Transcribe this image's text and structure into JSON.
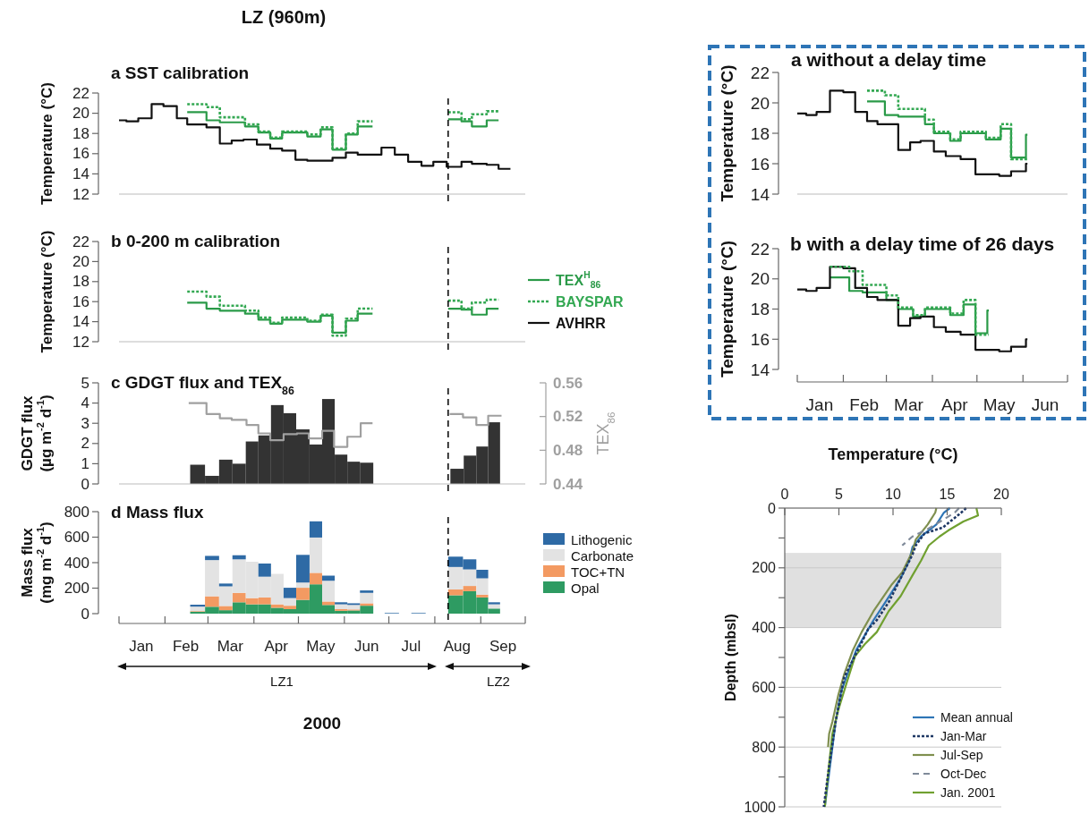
{
  "chart_data": [
    {
      "type": "step",
      "title": "a SST calibration",
      "ylabel": "Temperature (°C)",
      "annotations": [
        "LZ (960m)"
      ],
      "xlim": [
        "2000-01-01",
        "2000-10-01"
      ],
      "ylim": [
        12,
        22
      ],
      "yticks": [
        12,
        14,
        16,
        18,
        20,
        22
      ],
      "tick_labels": "y",
      "legend": "right",
      "ref_lines": [
        {
          "axis": "x",
          "value": "2000-08-10",
          "color": "#000000",
          "line_style": "dashed"
        }
      ],
      "series": [
        {
          "name": "TEX$^{H}$$_{86}$",
          "color": "#2a9a48",
          "line_style": "solid",
          "x": [
            "2000-02-16",
            "2000-02-29",
            "2000-03-09",
            "2000-03-26",
            "2000-04-04",
            "2000-04-12",
            "2000-04-20",
            "2000-05-07",
            "2000-05-16",
            "2000-05-24",
            "2000-06-02",
            "2000-06-10",
            "2000-06-20",
            "2000-07-01",
            "2000-08-10",
            "2000-08-19",
            "2000-08-26",
            "2000-09-05",
            "2000-09-13"
          ],
          "values": [
            20.1,
            19.3,
            19.1,
            18.7,
            18.1,
            17.5,
            18.1,
            17.7,
            18.4,
            16.4,
            17.9,
            18.7,
            18.7,
            null,
            19.4,
            19.2,
            18.7,
            19.3,
            19.3
          ]
        },
        {
          "name": "BAYSPAR",
          "color": "#33a852",
          "line_style": "dotted",
          "x": [
            "2000-02-16",
            "2000-02-29",
            "2000-03-09",
            "2000-03-26",
            "2000-04-04",
            "2000-04-12",
            "2000-04-20",
            "2000-05-07",
            "2000-05-16",
            "2000-05-24",
            "2000-06-02",
            "2000-06-10",
            "2000-06-20",
            "2000-07-01",
            "2000-08-10",
            "2000-08-19",
            "2000-08-26",
            "2000-09-05",
            "2000-09-13"
          ],
          "values": [
            20.9,
            20.6,
            19.6,
            18.9,
            18.2,
            17.6,
            18.2,
            17.9,
            18.6,
            16.5,
            18.0,
            19.2,
            19.2,
            null,
            20.1,
            19.4,
            19.9,
            20.2,
            20.2
          ]
        },
        {
          "name": "AVHRR",
          "color": "#111111",
          "line_style": "solid",
          "x": [
            "2000-01-01",
            "2000-01-06",
            "2000-01-14",
            "2000-01-23",
            "2000-01-31",
            "2000-02-09",
            "2000-02-16",
            "2000-02-29",
            "2000-03-09",
            "2000-03-17",
            "2000-03-25",
            "2000-04-03",
            "2000-04-12",
            "2000-04-20",
            "2000-04-29",
            "2000-05-07",
            "2000-05-16",
            "2000-05-24",
            "2000-06-02",
            "2000-06-10",
            "2000-06-18",
            "2000-06-26",
            "2000-07-05",
            "2000-07-14",
            "2000-07-23",
            "2000-07-31",
            "2000-08-09",
            "2000-08-19",
            "2000-08-26",
            "2000-09-05",
            "2000-09-13",
            "2000-09-21"
          ],
          "values": [
            19.3,
            19.2,
            19.5,
            20.9,
            20.7,
            19.5,
            18.9,
            18.6,
            17.0,
            17.3,
            17.4,
            16.9,
            16.5,
            16.3,
            15.4,
            15.3,
            15.3,
            15.6,
            16.1,
            15.9,
            15.9,
            16.6,
            15.9,
            15.2,
            14.8,
            15.2,
            14.7,
            15.2,
            15.0,
            14.9,
            14.5,
            14.5
          ]
        }
      ]
    },
    {
      "type": "step",
      "title": "b 0-200 m calibration",
      "xlim": [
        "2000-01-01",
        "2000-10-01"
      ],
      "ylabel": "Temperature (°C)",
      "ylim": [
        12,
        22
      ],
      "yticks": [
        12,
        14,
        16,
        18,
        20,
        22
      ],
      "tick_labels": "y",
      "ref_lines": [
        {
          "axis": "x",
          "value": "2000-08-10",
          "color": "#000000",
          "line_style": "dashed"
        }
      ],
      "series": [
        {
          "color": "#2a9a48",
          "line_style": "solid",
          "x": [
            "2000-02-16",
            "2000-02-29",
            "2000-03-09",
            "2000-03-26",
            "2000-04-04",
            "2000-04-12",
            "2000-04-20",
            "2000-05-07",
            "2000-05-16",
            "2000-05-24",
            "2000-06-02",
            "2000-06-10",
            "2000-06-20",
            "2000-07-01",
            "2000-08-10",
            "2000-08-19",
            "2000-08-26",
            "2000-09-05",
            "2000-09-13"
          ],
          "values": [
            15.9,
            15.3,
            15.1,
            14.8,
            14.2,
            13.8,
            14.2,
            14.0,
            14.6,
            12.9,
            14.1,
            14.8,
            14.8,
            null,
            15.3,
            15.2,
            14.7,
            15.3,
            15.3
          ]
        },
        {
          "color": "#33a852",
          "line_style": "dotted",
          "x": [
            "2000-02-16",
            "2000-02-29",
            "2000-03-09",
            "2000-03-26",
            "2000-04-04",
            "2000-04-12",
            "2000-04-20",
            "2000-05-07",
            "2000-05-16",
            "2000-05-24",
            "2000-06-02",
            "2000-06-10",
            "2000-06-20",
            "2000-07-01",
            "2000-08-10",
            "2000-08-19",
            "2000-08-26",
            "2000-09-05",
            "2000-09-13"
          ],
          "values": [
            17.0,
            16.5,
            15.6,
            15.1,
            14.4,
            13.9,
            14.4,
            14.1,
            14.7,
            12.6,
            14.3,
            15.3,
            15.3,
            null,
            16.1,
            15.3,
            15.9,
            16.2,
            16.2
          ]
        }
      ]
    },
    {
      "type": "bar",
      "title": "c GDGT flux and TEX$_{86}$",
      "ylabel": "GDGT flux\n(µg m$^{-2}$ d$^{-1}$)",
      "y2label": "TEX$_{86}$",
      "xlim": [
        "2000-01-01",
        "2000-10-01"
      ],
      "ylim": [
        0,
        5
      ],
      "yticks": [
        0,
        1,
        2,
        3,
        4,
        5
      ],
      "y2lim": [
        0.44,
        0.56
      ],
      "y2ticks": [
        0.44,
        0.48,
        0.52,
        0.56
      ],
      "tick_labels": "y",
      "ref_lines": [
        {
          "axis": "x",
          "value": "2000-08-10",
          "color": "#000000",
          "line_style": "dashed"
        }
      ],
      "series": [
        {
          "color": "#333333",
          "x": [
            "2000-02-23",
            "2000-03-04",
            "2000-03-13",
            "2000-03-22",
            "2000-03-31",
            "2000-04-08",
            "2000-04-17",
            "2000-04-25",
            "2000-05-04",
            "2000-05-13",
            "2000-05-21",
            "2000-05-30",
            "2000-06-07",
            "2000-06-16",
            "2000-07-15",
            "2000-08-16",
            "2000-08-25",
            "2000-09-02",
            "2000-09-10"
          ],
          "values": [
            0.95,
            0.4,
            1.2,
            1.0,
            2.1,
            2.4,
            3.9,
            3.5,
            2.7,
            1.95,
            4.2,
            1.45,
            1.1,
            1.05,
            null,
            0.75,
            1.4,
            1.85,
            3.05
          ]
        },
        {
          "type": "step",
          "axis": "y2",
          "color": "#a0a0a0",
          "x": [
            "2000-02-17",
            "2000-02-29",
            "2000-03-09",
            "2000-03-17",
            "2000-03-27",
            "2000-04-04",
            "2000-04-12",
            "2000-04-21",
            "2000-04-30",
            "2000-05-08",
            "2000-05-17",
            "2000-05-25",
            "2000-06-03",
            "2000-06-12",
            "2000-06-20",
            "2000-07-01",
            "2000-08-11",
            "2000-08-20",
            "2000-08-29",
            "2000-09-06",
            "2000-09-15"
          ],
          "values": [
            0.536,
            0.523,
            0.518,
            0.516,
            0.51,
            0.5,
            0.492,
            0.499,
            0.5,
            0.494,
            0.503,
            0.484,
            0.496,
            0.512,
            0.512,
            null,
            0.523,
            0.519,
            0.51,
            0.521,
            0.521
          ]
        }
      ]
    },
    {
      "type": "bar",
      "stacked": true,
      "title": "d Mass flux",
      "ylabel": "Mass flux\n(mg m$^{-2}$ d$^{-1}$)",
      "xlabel": "2000",
      "annotations": [
        "LZ1",
        "LZ2"
      ],
      "xlim": [
        "2000-01-01",
        "2000-10-01"
      ],
      "xticks": [
        {
          "value": "2000-01-01",
          "label": null
        },
        {
          "value": "2000-01-16",
          "label": "Jan"
        },
        {
          "value": "2000-02-01",
          "label": null
        },
        {
          "value": "2000-02-15",
          "label": "Feb"
        },
        {
          "value": "2000-03-01",
          "label": null
        },
        {
          "value": "2000-03-16",
          "label": "Mar"
        },
        {
          "value": "2000-04-01",
          "label": null
        },
        {
          "value": "2000-04-16",
          "label": "Apr"
        },
        {
          "value": "2000-05-01",
          "label": null
        },
        {
          "value": "2000-05-16",
          "label": "May"
        },
        {
          "value": "2000-06-01",
          "label": null
        },
        {
          "value": "2000-06-16",
          "label": "Jun"
        },
        {
          "value": "2000-07-01",
          "label": null
        },
        {
          "value": "2000-07-16",
          "label": "Jul"
        },
        {
          "value": "2000-08-01",
          "label": null
        },
        {
          "value": "2000-08-16",
          "label": "Aug"
        },
        {
          "value": "2000-09-01",
          "label": null
        },
        {
          "value": "2000-09-16",
          "label": "Sep"
        },
        {
          "value": "2000-10-01",
          "label": null
        }
      ],
      "ylim": [
        0,
        800
      ],
      "yticks": [
        0,
        200,
        400,
        600,
        800
      ],
      "legend": "right",
      "ref_lines": [
        {
          "axis": "x",
          "value": "2000-08-10",
          "color": "#000000",
          "line_style": "dashed"
        }
      ],
      "x": [
        "2000-02-23",
        "2000-03-04",
        "2000-03-13",
        "2000-03-22",
        "2000-03-31",
        "2000-04-08",
        "2000-04-17",
        "2000-04-25",
        "2000-05-04",
        "2000-05-13",
        "2000-05-21",
        "2000-05-30",
        "2000-06-07",
        "2000-06-16",
        "2000-06-24",
        "2000-07-03",
        "2000-07-11",
        "2000-07-21",
        "2000-08-05",
        "2000-08-15",
        "2000-08-25",
        "2000-09-02",
        "2000-09-10"
      ],
      "series": [
        {
          "name": "Opal",
          "color": "#2e9b62",
          "values": [
            15,
            54,
            27,
            89,
            73,
            73,
            46,
            35,
            108,
            230,
            68,
            22,
            25,
            62,
            null,
            0,
            null,
            0,
            null,
            144,
            176,
            127,
            40
          ]
        },
        {
          "name": "TOC+TN",
          "color": "#f39a62",
          "values": [
            5,
            82,
            33,
            74,
            49,
            54,
            27,
            27,
            95,
            90,
            27,
            13,
            8,
            19,
            null,
            0,
            null,
            0,
            null,
            46,
            41,
            22,
            null
          ]
        },
        {
          "name": "Carbonate",
          "color": "#e3e3e3",
          "values": [
            35,
            284,
            154,
            263,
            285,
            163,
            239,
            60,
            41,
            277,
            163,
            38,
            35,
            82,
            null,
            0,
            null,
            0,
            null,
            176,
            130,
            128,
            33
          ]
        },
        {
          "name": "Lithogenic",
          "color": "#2e6aa5",
          "values": [
            15,
            33,
            22,
            32,
            0,
            103,
            0,
            81,
            217,
            127,
            40,
            16,
            13,
            19,
            null,
            5,
            null,
            5,
            null,
            81,
            79,
            67,
            16
          ]
        }
      ]
    },
    {
      "type": "step",
      "title": "a without a delay time",
      "xlim": [
        "2000-01-01",
        "2000-07-01"
      ],
      "ylabel": "Temperature (°C)",
      "ylim": [
        14,
        22
      ],
      "yticks": [
        14,
        16,
        18,
        20,
        22
      ],
      "tick_labels": "y",
      "series": [
        {
          "color": "#2a9a48",
          "line_style": "solid",
          "x": [
            "2000-02-17",
            "2000-02-29",
            "2000-03-09",
            "2000-03-27",
            "2000-04-02",
            "2000-04-13",
            "2000-04-20",
            "2000-05-07",
            "2000-05-17",
            "2000-05-24",
            "2000-06-03",
            "2000-06-04"
          ],
          "values": [
            20.1,
            19.2,
            19.1,
            18.6,
            18.0,
            17.5,
            18.0,
            17.6,
            18.3,
            16.4,
            17.9,
            17.9
          ]
        },
        {
          "color": "#33a852",
          "line_style": "dotted",
          "x": [
            "2000-02-17",
            "2000-02-29",
            "2000-03-09",
            "2000-03-27",
            "2000-04-02",
            "2000-04-13",
            "2000-04-20",
            "2000-05-07",
            "2000-05-17",
            "2000-05-24",
            "2000-06-04"
          ],
          "values": [
            20.8,
            20.5,
            19.6,
            18.9,
            18.1,
            17.6,
            18.1,
            17.7,
            18.6,
            16.3,
            16.3
          ]
        },
        {
          "color": "#111111",
          "line_style": "solid",
          "x": [
            "2000-01-01",
            "2000-01-07",
            "2000-01-14",
            "2000-01-23",
            "2000-02-01",
            "2000-02-09",
            "2000-02-17",
            "2000-02-24",
            "2000-03-09",
            "2000-03-17",
            "2000-03-24",
            "2000-04-02",
            "2000-04-10",
            "2000-04-20",
            "2000-04-30",
            "2000-05-16",
            "2000-05-24",
            "2000-06-03",
            "2000-06-04"
          ],
          "values": [
            19.3,
            19.2,
            19.4,
            20.8,
            20.7,
            19.4,
            18.8,
            18.6,
            16.9,
            17.4,
            17.5,
            16.8,
            16.5,
            16.3,
            15.3,
            15.2,
            15.5,
            16.0,
            16.0
          ]
        }
      ]
    },
    {
      "type": "step",
      "title": "b with a delay time of 26 days",
      "ylabel": "Temperature (°C)",
      "xlim": [
        "2000-01-01",
        "2000-07-01"
      ],
      "xticks": [
        {
          "value": "2000-01-01",
          "label": null
        },
        {
          "value": "2000-01-16",
          "label": "Jan"
        },
        {
          "value": "2000-02-01",
          "label": null
        },
        {
          "value": "2000-02-15",
          "label": "Feb"
        },
        {
          "value": "2000-03-01",
          "label": null
        },
        {
          "value": "2000-03-16",
          "label": "Mar"
        },
        {
          "value": "2000-04-01",
          "label": null
        },
        {
          "value": "2000-04-16",
          "label": "Apr"
        },
        {
          "value": "2000-05-01",
          "label": null
        },
        {
          "value": "2000-05-16",
          "label": "May"
        },
        {
          "value": "2000-06-01",
          "label": null
        },
        {
          "value": "2000-06-16",
          "label": "Jun"
        },
        {
          "value": "2000-07-01",
          "label": null
        }
      ],
      "ylim": [
        14,
        22
      ],
      "yticks": [
        14,
        16,
        18,
        20,
        22
      ],
      "series": [
        {
          "color": "#2a9a48",
          "line_style": "solid",
          "x": [
            "2000-01-23",
            "2000-02-05",
            "2000-02-14",
            "2000-03-01",
            "2000-03-09",
            "2000-03-19",
            "2000-03-27",
            "2000-04-13",
            "2000-04-22",
            "2000-04-30",
            "2000-05-08",
            "2000-05-09"
          ],
          "values": [
            20.1,
            19.2,
            19.1,
            18.6,
            18.0,
            17.5,
            18.0,
            17.6,
            18.3,
            16.4,
            17.9,
            17.9
          ]
        },
        {
          "color": "#33a852",
          "line_style": "dotted",
          "x": [
            "2000-01-23",
            "2000-02-05",
            "2000-02-14",
            "2000-03-01",
            "2000-03-09",
            "2000-03-19",
            "2000-03-27",
            "2000-04-13",
            "2000-04-22",
            "2000-04-30",
            "2000-05-09"
          ],
          "values": [
            20.8,
            20.5,
            19.6,
            18.9,
            18.1,
            17.6,
            18.1,
            17.7,
            18.6,
            16.3,
            16.3
          ]
        },
        {
          "color": "#111111",
          "line_style": "solid",
          "x": [
            "2000-01-01",
            "2000-01-07",
            "2000-01-14",
            "2000-01-23",
            "2000-02-01",
            "2000-02-09",
            "2000-02-17",
            "2000-02-24",
            "2000-03-09",
            "2000-03-17",
            "2000-03-24",
            "2000-04-02",
            "2000-04-10",
            "2000-04-20",
            "2000-04-30",
            "2000-05-16",
            "2000-05-24",
            "2000-06-03",
            "2000-06-04"
          ],
          "values": [
            19.3,
            19.2,
            19.4,
            20.8,
            20.7,
            19.4,
            18.8,
            18.6,
            16.9,
            17.4,
            17.5,
            16.8,
            16.5,
            16.3,
            15.3,
            15.2,
            15.5,
            16.0,
            16.0
          ]
        }
      ]
    },
    {
      "type": "line",
      "xlabel": "Temperature (°C)",
      "ylabel": "Depth (mbsl)",
      "xlim": [
        0,
        20
      ],
      "xticks": [
        0,
        5,
        10,
        15,
        20
      ],
      "ylim": [
        1000,
        0
      ],
      "yticks": [
        0,
        {
          "value": 100,
          "label": null
        },
        200,
        {
          "value": 300,
          "label": null
        },
        400,
        {
          "value": 500,
          "label": null
        },
        600,
        {
          "value": 700,
          "label": null
        },
        800,
        {
          "value": 900,
          "label": null
        },
        1000
      ],
      "grid": "y",
      "legend": "bottom right",
      "bands": [
        {
          "axis": "y",
          "from": 150,
          "to": 400,
          "color": "#e0e0e0"
        }
      ],
      "series": [
        {
          "name": "Mean annual",
          "color": "#2e75b6",
          "line_style": "solid",
          "x": [
            15.25,
            14.7,
            14.0,
            12.6,
            11.8,
            11.5,
            10.7,
            9.3,
            8.2,
            6.6,
            5.2,
            4.7,
            3.7
          ],
          "values": [
            0,
            15,
            55,
            95,
            130,
            175,
            235,
            315,
            375,
            475,
            615,
            715,
            1000
          ]
        },
        {
          "name": "Jan-Mar",
          "color": "#1f3864",
          "line_style": "dotted",
          "x": [
            16.75,
            16.3,
            14.6,
            12.9,
            12.1,
            11.8,
            10.7,
            9.6,
            8.5,
            7.7,
            6.9,
            5.5,
            4.7,
            4.1,
            3.6
          ],
          "values": [
            0,
            15,
            65,
            85,
            125,
            155,
            235,
            315,
            375,
            405,
            465,
            565,
            715,
            865,
            1000
          ]
        },
        {
          "name": "Jul-Sep",
          "color": "#7f8f4f",
          "line_style": "solid",
          "x": [
            14.0,
            13.9,
            13.2,
            12.1,
            11.8,
            10.85,
            9.9,
            8.2,
            7.1,
            6.3,
            5.5,
            4.95,
            4.4,
            4.1,
            4.0
          ],
          "values": [
            0,
            15,
            55,
            105,
            145,
            215,
            255,
            345,
            415,
            475,
            555,
            625,
            715,
            755,
            800
          ]
        },
        {
          "name": "Oct-Dec",
          "color": "#7f8a99",
          "line_style": "dashed",
          "x": [
            16.1,
            15.7,
            14.6,
            13.2,
            11.8,
            10.85
          ],
          "values": [
            0,
            15,
            40,
            70,
            95,
            125
          ]
        },
        {
          "name": "Jan. 2001",
          "color": "#70a030",
          "line_style": "solid",
          "x": [
            17.7,
            17.85,
            16.5,
            15.1,
            14.3,
            13.3,
            12.6,
            11.8,
            10.7,
            9.6,
            8.5,
            7.4,
            6.5,
            5.8,
            4.95,
            4.4,
            4.1,
            3.7
          ],
          "values": [
            0,
            25,
            45,
            75,
            95,
            125,
            175,
            225,
            295,
            345,
            415,
            455,
            495,
            575,
            675,
            755,
            855,
            1000
          ]
        }
      ]
    }
  ]
}
